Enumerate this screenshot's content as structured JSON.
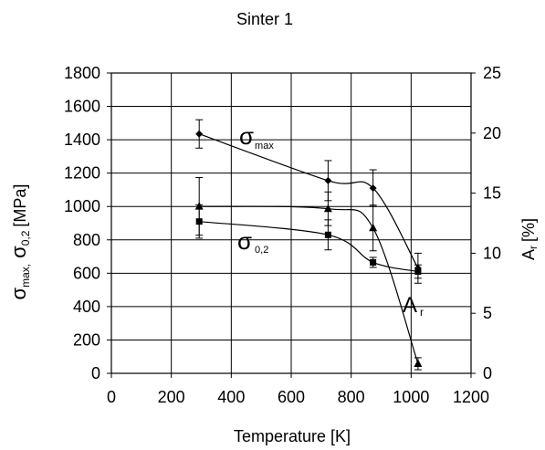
{
  "chart_data": {
    "type": "line",
    "title": "Sinter 1",
    "xlabel": "Temperature [K]",
    "xlim": [
      0,
      1200
    ],
    "xticks": [
      0,
      200,
      400,
      600,
      800,
      1000,
      1200
    ],
    "ylim": [
      0,
      1800
    ],
    "yticks": [
      0,
      200,
      400,
      600,
      800,
      1000,
      1200,
      1400,
      1600,
      1800
    ],
    "y2lim": [
      0,
      25
    ],
    "y2ticks": [
      0,
      5,
      10,
      15,
      20,
      25
    ],
    "ylabel": {
      "sigma1": "σ",
      "sub1": "max,",
      "sigma2": "σ",
      "sub2": "0,2",
      "unit": "[MPa]"
    },
    "y2label": {
      "main": "A",
      "sub": "r",
      "unit": "[%]"
    },
    "grid": true,
    "series": [
      {
        "marker": "diamond",
        "axis": "left",
        "label": "σ",
        "label_sub": "max",
        "x": [
          293,
          723,
          873,
          1023
        ],
        "y": [
          1435,
          1155,
          1110,
          630
        ],
        "err": [
          85,
          120,
          110,
          90
        ]
      },
      {
        "marker": "square",
        "axis": "left",
        "label": "σ",
        "label_sub": "0,2",
        "x": [
          293,
          723,
          873,
          1023
        ],
        "y": [
          910,
          830,
          665,
          610
        ],
        "err": [
          100,
          90,
          30,
          40
        ]
      },
      {
        "marker": "triangle",
        "axis": "right",
        "label": "A",
        "label_sub": "r",
        "x": [
          293,
          723,
          873,
          1023
        ],
        "y": [
          13.9,
          13.7,
          12.1,
          0.8
        ],
        "err": [
          2.4,
          1.4,
          1.9,
          0.5
        ]
      }
    ]
  }
}
